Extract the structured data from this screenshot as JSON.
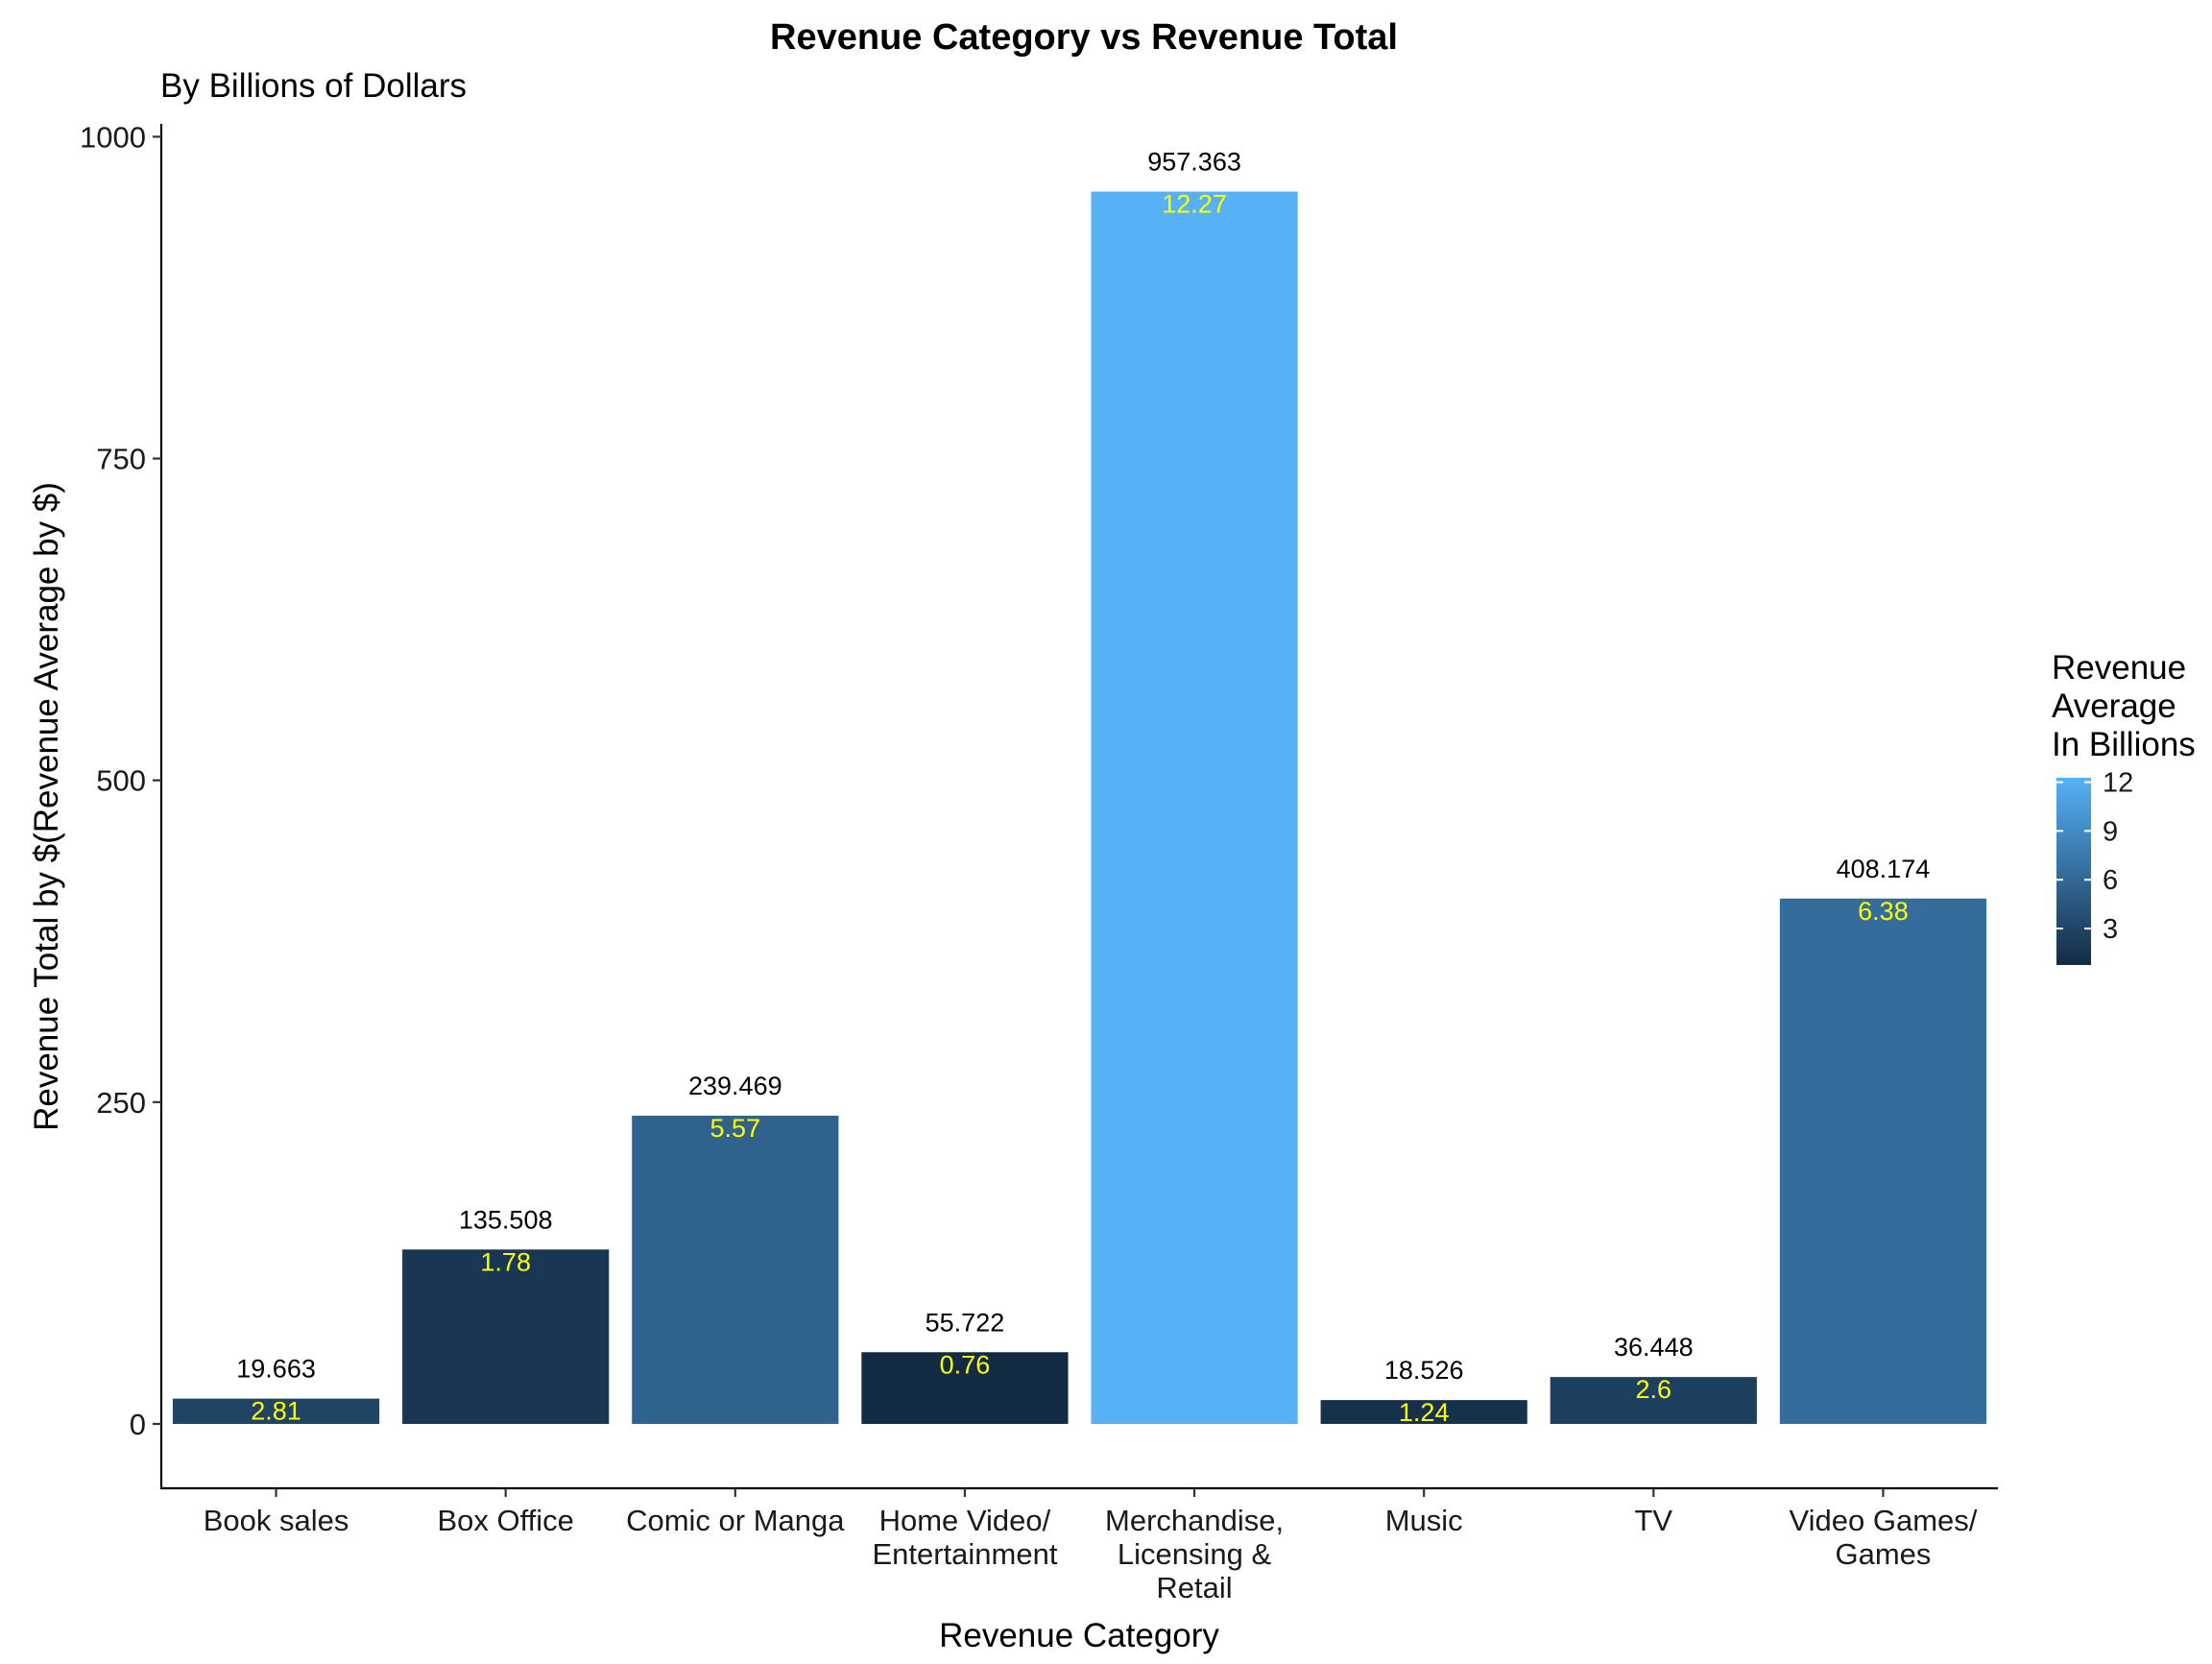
{
  "chart_data": {
    "type": "bar",
    "title": "Revenue Category vs Revenue Total",
    "subtitle": "By Billions of Dollars",
    "xlabel": "Revenue Category",
    "ylabel": "Revenue Total by $(Revenue Average by $)",
    "ylim": [
      -50,
      1010
    ],
    "yticks": [
      0,
      250,
      500,
      750,
      1000
    ],
    "categories": [
      [
        "Book sales"
      ],
      [
        "Box Office"
      ],
      [
        "Comic or Manga"
      ],
      [
        "Home Video/",
        "Entertainment"
      ],
      [
        "Merchandise,",
        "Licensing &",
        "Retail"
      ],
      [
        "Music"
      ],
      [
        "TV"
      ],
      [
        "Video Games/",
        "Games"
      ]
    ],
    "values": [
      19.663,
      135.508,
      239.469,
      55.722,
      957.363,
      18.526,
      36.448,
      408.174
    ],
    "value_labels": [
      "19.663",
      "135.508",
      "239.469",
      "55.722",
      "957.363",
      "18.526",
      "36.448",
      "408.174"
    ],
    "averages": [
      2.81,
      1.78,
      5.57,
      0.76,
      12.27,
      1.24,
      2.6,
      6.38
    ],
    "average_labels": [
      "2.81",
      "1.78",
      "5.57",
      "0.76",
      "12.27",
      "1.24",
      "2.6",
      "6.38"
    ],
    "average_label_color": "#FFFF00",
    "grid": false,
    "legend": {
      "title": [
        "Revenue",
        "Average",
        "In Billions"
      ],
      "placement": "right",
      "ticks": [
        3,
        6,
        9,
        12
      ],
      "range": [
        0.76,
        12.27
      ],
      "color_low": "#132B43",
      "color_high": "#56B1F7"
    }
  }
}
